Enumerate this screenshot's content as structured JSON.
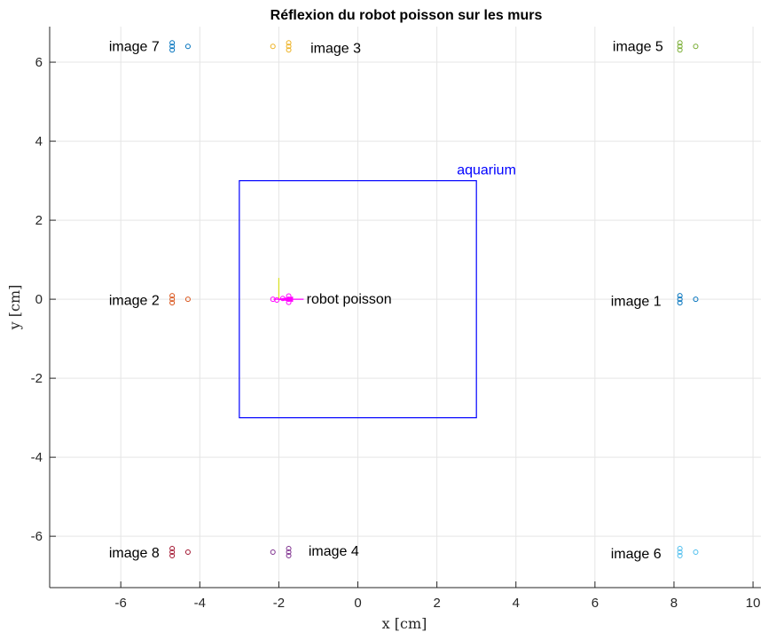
{
  "chart_data": {
    "type": "scatter",
    "title": "Réflexion du robot poisson sur les murs",
    "xlabel": "x [cm]",
    "ylabel": "y [cm]",
    "xlim": [
      -7.8,
      10.2
    ],
    "ylim": [
      -7.3,
      6.9
    ],
    "xticks": [
      -6,
      -4,
      -2,
      0,
      2,
      4,
      6,
      8,
      10
    ],
    "yticks": [
      -6,
      -4,
      -2,
      0,
      2,
      4,
      6
    ],
    "grid": true,
    "colors": {
      "axes": "#262626",
      "grid": "#e5e5e5",
      "aquarium": "#0000ff",
      "robot": "#ff00ff"
    },
    "aquarium": {
      "label": "aquarium",
      "x": [
        -3,
        3
      ],
      "y": [
        -3,
        3
      ]
    },
    "robot": {
      "label": "robot poisson",
      "position": [
        -2,
        0
      ],
      "color": "#ff00ff"
    },
    "series": [
      {
        "name": "robot poisson",
        "color": "#ff00ff",
        "points": [
          [
            -2.15,
            0
          ],
          [
            -1.75,
            0.08
          ],
          [
            -1.75,
            0.0
          ],
          [
            -1.75,
            -0.08
          ],
          [
            -1.9,
            0.02
          ],
          [
            -2.05,
            -0.02
          ]
        ]
      },
      {
        "name": "image 1",
        "color": "#0072bd",
        "points": [
          [
            8.15,
            0.09
          ],
          [
            8.15,
            0.0
          ],
          [
            8.15,
            -0.09
          ],
          [
            8.55,
            0.0
          ]
        ]
      },
      {
        "name": "image 2",
        "color": "#d95319",
        "points": [
          [
            -4.7,
            0.09
          ],
          [
            -4.7,
            0.0
          ],
          [
            -4.7,
            -0.09
          ],
          [
            -4.3,
            0.0
          ]
        ]
      },
      {
        "name": "image 3",
        "color": "#edb120",
        "points": [
          [
            -2.15,
            6.4
          ],
          [
            -1.75,
            6.49
          ],
          [
            -1.75,
            6.4
          ],
          [
            -1.75,
            6.31
          ]
        ]
      },
      {
        "name": "image 4",
        "color": "#7e2f8e",
        "points": [
          [
            -2.15,
            -6.4
          ],
          [
            -1.75,
            -6.31
          ],
          [
            -1.75,
            -6.4
          ],
          [
            -1.75,
            -6.49
          ]
        ]
      },
      {
        "name": "image 5",
        "color": "#77ac30",
        "points": [
          [
            8.15,
            6.49
          ],
          [
            8.15,
            6.4
          ],
          [
            8.15,
            6.31
          ],
          [
            8.55,
            6.4
          ]
        ]
      },
      {
        "name": "image 6",
        "color": "#4dbeee",
        "points": [
          [
            8.15,
            -6.31
          ],
          [
            8.15,
            -6.4
          ],
          [
            8.15,
            -6.49
          ],
          [
            8.55,
            -6.4
          ]
        ]
      },
      {
        "name": "image 7",
        "color": "#0072bd",
        "points": [
          [
            -4.7,
            6.49
          ],
          [
            -4.7,
            6.4
          ],
          [
            -4.7,
            6.31
          ],
          [
            -4.3,
            6.4
          ]
        ]
      },
      {
        "name": "image 8",
        "color": "#a2142f",
        "points": [
          [
            -4.7,
            -6.31
          ],
          [
            -4.7,
            -6.4
          ],
          [
            -4.7,
            -6.49
          ],
          [
            -4.3,
            -6.4
          ]
        ]
      }
    ],
    "annotations": [
      {
        "text": "image 1",
        "x": 6.4,
        "y": -0.05
      },
      {
        "text": "image 2",
        "x": -6.3,
        "y": -0.03
      },
      {
        "text": "image 3",
        "x": -1.2,
        "y": 6.35
      },
      {
        "text": "image 4",
        "x": -1.25,
        "y": -6.38
      },
      {
        "text": "image 5",
        "x": 6.45,
        "y": 6.4
      },
      {
        "text": "image 6",
        "x": 6.4,
        "y": -6.45
      },
      {
        "text": "image 7",
        "x": -6.3,
        "y": 6.4
      },
      {
        "text": "image 8",
        "x": -6.3,
        "y": -6.42
      },
      {
        "text": "robot poisson",
        "x": -1.3,
        "y": 0.0
      }
    ]
  }
}
